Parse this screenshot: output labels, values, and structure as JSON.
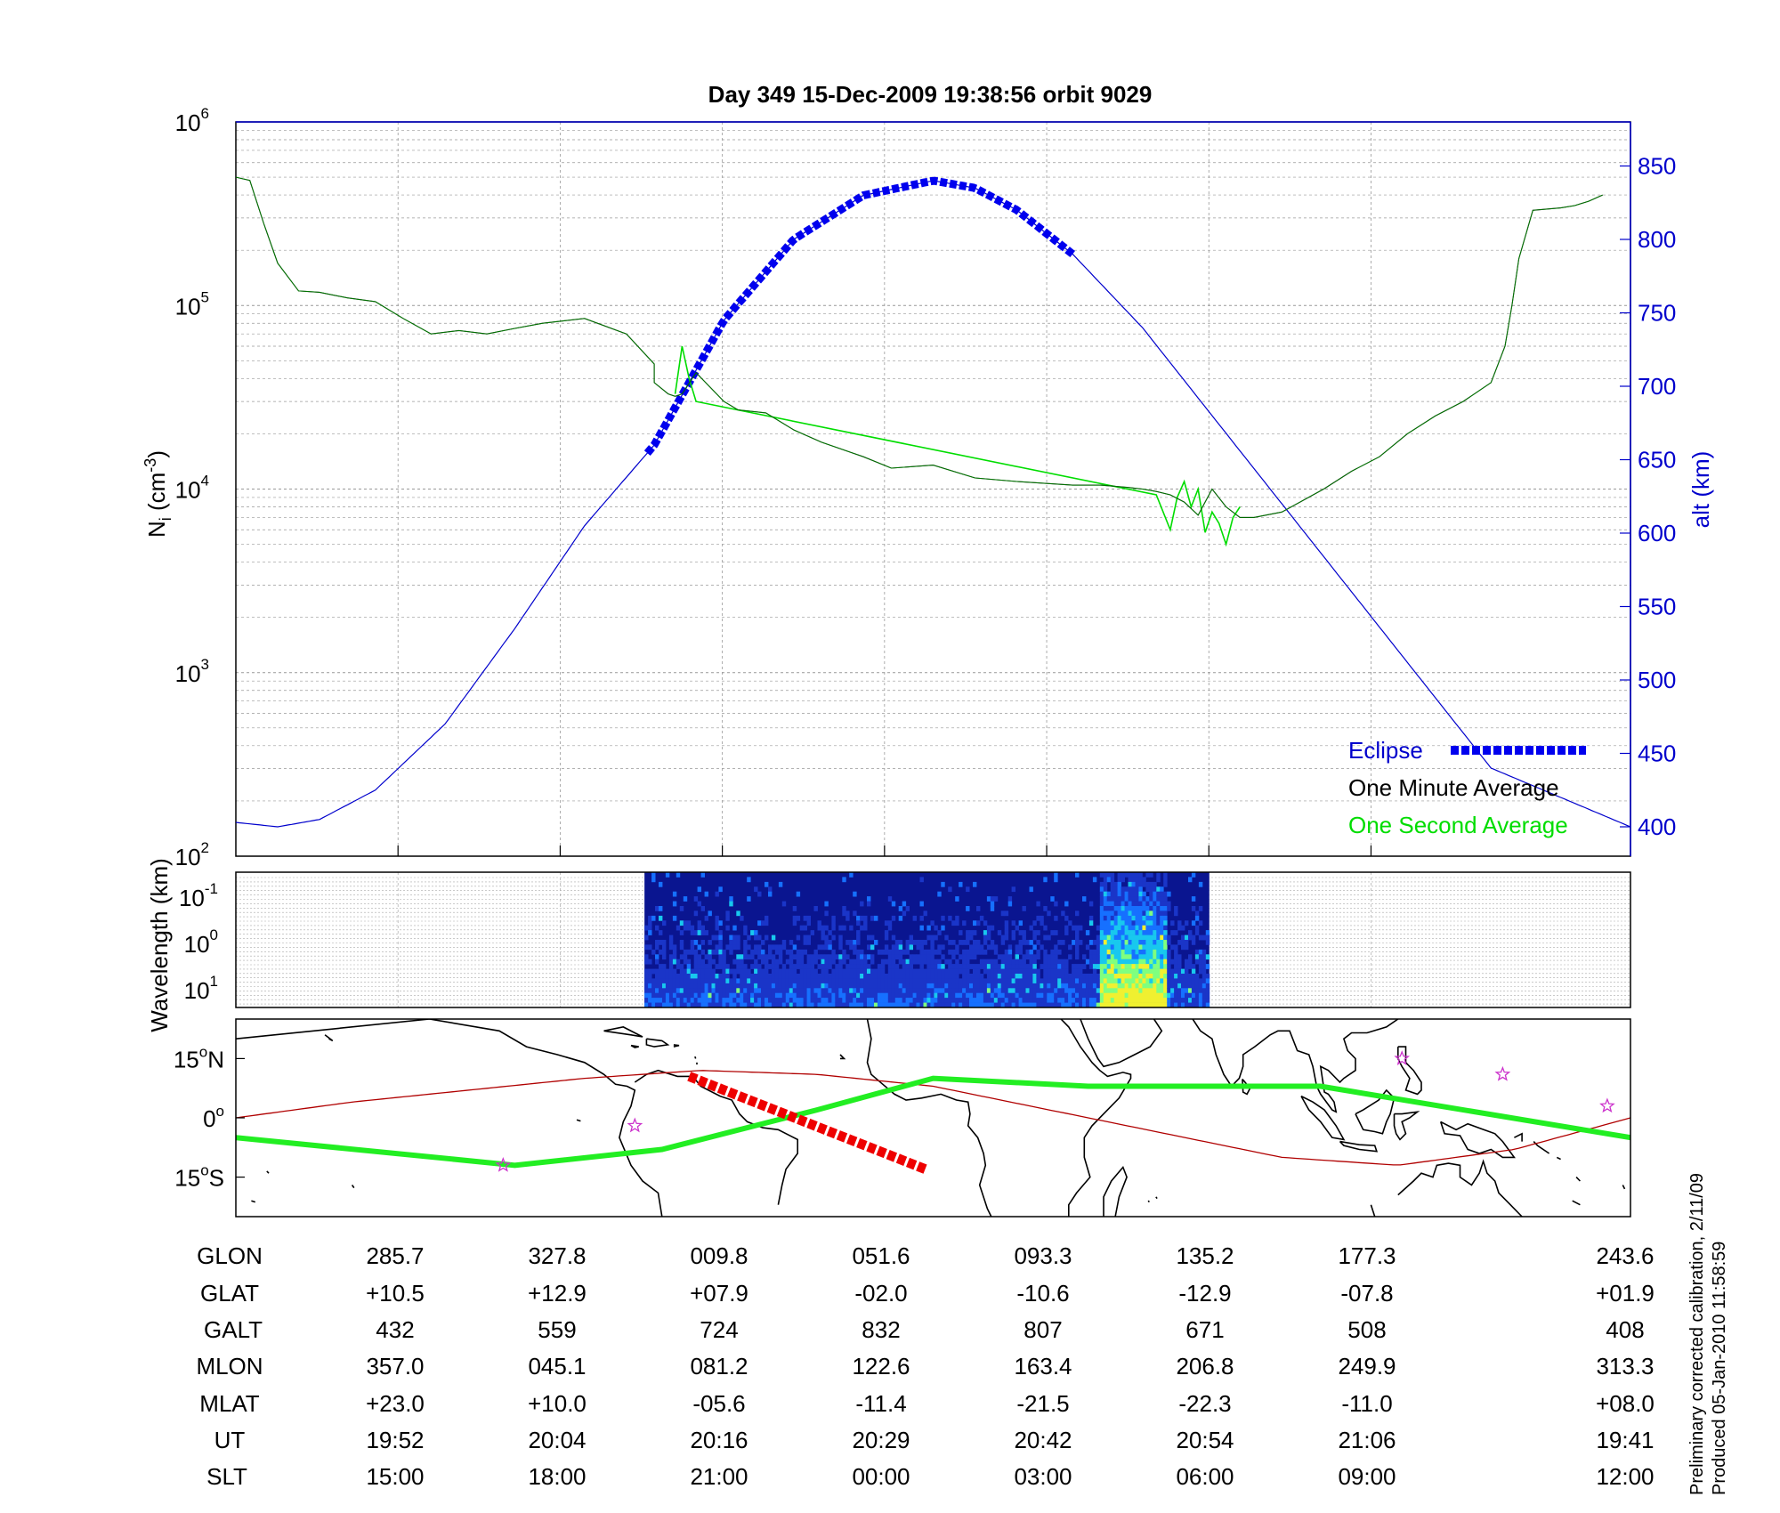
{
  "title": "Day 349  15-Dec-2009 19:38:56   orbit 9029",
  "colors": {
    "alt_axis": "#0000cc",
    "eclipse": "#0000ee",
    "one_minute": "#000000",
    "one_second": "#00dd00",
    "track": "#b00000",
    "sat_path": "#22ee22",
    "eclipse_track": "#ee0000",
    "star": "#cc33cc"
  },
  "legend": {
    "eclipse": "Eclipse",
    "one_minute": "One Minute Average",
    "one_second": "One Second Average",
    "placement": "bottom-right"
  },
  "footnote": {
    "line1": "Preliminary corrected calibration, 2/11/09",
    "line2": "Produced 05-Jan-2010 11:58:59"
  },
  "table": {
    "row_labels": [
      "GLON",
      "GLAT",
      "GALT",
      "MLON",
      "MLAT",
      "UT",
      "SLT"
    ],
    "columns": [
      [
        "285.7",
        "+10.5",
        "432",
        "357.0",
        "+23.0",
        "19:52",
        "15:00"
      ],
      [
        "327.8",
        "+12.9",
        "559",
        "045.1",
        "+10.0",
        "20:04",
        "18:00"
      ],
      [
        "009.8",
        "+07.9",
        "724",
        "081.2",
        "-05.6",
        "20:16",
        "21:00"
      ],
      [
        "051.6",
        "-02.0",
        "832",
        "122.6",
        "-11.4",
        "20:29",
        "00:00"
      ],
      [
        "093.3",
        "-10.6",
        "807",
        "163.4",
        "-21.5",
        "20:42",
        "03:00"
      ],
      [
        "135.2",
        "-12.9",
        "671",
        "206.8",
        "-22.3",
        "20:54",
        "06:00"
      ],
      [
        "177.3",
        "-07.8",
        "508",
        "249.9",
        "-11.0",
        "21:06",
        "09:00"
      ],
      [
        "243.6",
        "+01.9",
        "408",
        "313.3",
        "+08.0",
        "19:41",
        "12:00"
      ]
    ]
  },
  "chart_data": [
    {
      "type": "line",
      "ylabel": "N_i (cm^-3)",
      "ylabel_right": "alt (km)",
      "yscale": "log",
      "ylim": [
        100,
        1000000
      ],
      "ylim_right": [
        380,
        880
      ],
      "yticks": [
        {
          "base": "10",
          "exp": "2"
        },
        {
          "base": "10",
          "exp": "3"
        },
        {
          "base": "10",
          "exp": "4"
        },
        {
          "base": "10",
          "exp": "5"
        },
        {
          "base": "10",
          "exp": "6"
        }
      ],
      "yticks_right": [
        "400",
        "450",
        "500",
        "550",
        "600",
        "650",
        "700",
        "750",
        "800",
        "850"
      ],
      "x_fraction_range": [
        0,
        1
      ],
      "grid": true,
      "series": [
        {
          "name": "One Minute Average",
          "x": [
            0,
            0.01,
            0.02,
            0.03,
            0.045,
            0.06,
            0.08,
            0.1,
            0.12,
            0.14,
            0.16,
            0.18,
            0.2,
            0.22,
            0.25,
            0.28,
            0.3,
            0.3,
            0.31,
            0.315,
            0.32,
            0.33,
            0.35,
            0.36,
            0.38,
            0.4,
            0.42,
            0.45,
            0.47,
            0.5,
            0.53,
            0.56,
            0.6,
            0.62,
            0.64,
            0.65,
            0.66,
            0.67,
            0.68,
            0.69,
            0.7,
            0.71,
            0.72,
            0.73,
            0.75,
            0.78,
            0.8,
            0.82,
            0.84,
            0.86,
            0.88,
            0.9,
            0.91,
            0.915,
            0.92,
            0.93,
            0.95,
            0.96,
            0.97,
            0.98,
            0.99,
            1.0
          ],
          "y": [
            500000,
            480000,
            280000,
            170000,
            120000,
            118000,
            110000,
            105000,
            85000,
            70000,
            73000,
            70000,
            75000,
            80000,
            85000,
            70000,
            48000,
            38000,
            33000,
            32000,
            33000,
            43000,
            30000,
            27000,
            26000,
            21000,
            18000,
            15000,
            13000,
            13500,
            11500,
            11000,
            10500,
            10500,
            10200,
            10000,
            9700,
            9300,
            8500,
            7200,
            10000,
            8000,
            7000,
            7000,
            7500,
            10000,
            12500,
            15000,
            20000,
            25000,
            30000,
            38000,
            60000,
            100000,
            180000,
            330000,
            340000,
            350000,
            370000,
            400000,
            null,
            410000
          ]
        },
        {
          "name": "One Second Average",
          "x": [
            0.315,
            0.32,
            0.325,
            0.33,
            0.66,
            0.67,
            0.675,
            0.68,
            0.685,
            0.69,
            0.695,
            0.7,
            0.705,
            0.71,
            0.715,
            0.72
          ],
          "y": [
            33000,
            60000,
            40000,
            30000,
            9300,
            6000,
            9000,
            11000,
            8000,
            10000,
            5800,
            7500,
            6500,
            5000,
            7000,
            8000
          ]
        },
        {
          "name": "alt",
          "axis": "right",
          "x": [
            0,
            0.03,
            0.06,
            0.1,
            0.15,
            0.2,
            0.25,
            0.3,
            0.35,
            0.4,
            0.45,
            0.5,
            0.53,
            0.56,
            0.6,
            0.65,
            0.7,
            0.75,
            0.8,
            0.85,
            0.9,
            0.95,
            1.0
          ],
          "y": [
            403,
            400,
            405,
            425,
            470,
            535,
            605,
            660,
            745,
            800,
            830,
            840,
            835,
            820,
            790,
            740,
            680,
            620,
            560,
            500,
            440,
            420,
            400
          ]
        },
        {
          "name": "Eclipse",
          "axis": "right",
          "x_range": [
            0.295,
            0.6
          ]
        }
      ]
    },
    {
      "type": "heatmap",
      "ylabel": "Wavelength (km)",
      "yticks": [
        {
          "base": "10",
          "exp": "-1"
        },
        {
          "base": "10",
          "exp": "0"
        },
        {
          "base": "10",
          "exp": "1"
        }
      ],
      "x_range": [
        0.293,
        0.698
      ]
    },
    {
      "type": "line",
      "xlim": [
        -180,
        180
      ],
      "ylim": [
        -25,
        25
      ],
      "yticks": [
        {
          "num": "15",
          "deg": "o",
          "hemi": "N",
          "value": 15
        },
        {
          "num": "0",
          "deg": "o",
          "hemi": "",
          "value": 0
        },
        {
          "num": "15",
          "deg": "o",
          "hemi": "S",
          "value": -15
        }
      ],
      "series": [
        {
          "name": "satellite path",
          "x": [
            -180,
            -108,
            -70,
            -30,
            0,
            40,
            100,
            180
          ],
          "y": [
            -5,
            -12,
            -8,
            2,
            10,
            8,
            8,
            -5
          ]
        },
        {
          "name": "magnetic equator",
          "x": [
            -180,
            -150,
            -120,
            -90,
            -60,
            -30,
            0,
            30,
            60,
            90,
            120,
            150,
            180
          ],
          "y": [
            0,
            4,
            7,
            10,
            12,
            11,
            8,
            2,
            -4,
            -10,
            -12,
            -8,
            0
          ]
        },
        {
          "name": "eclipse track",
          "x_range": [
            -63,
            -2
          ]
        },
        {
          "name": "stars",
          "x": [
            -111,
            -77,
            121,
            147,
            174
          ],
          "y": [
            -12,
            -2,
            15,
            11,
            3
          ]
        }
      ]
    }
  ]
}
